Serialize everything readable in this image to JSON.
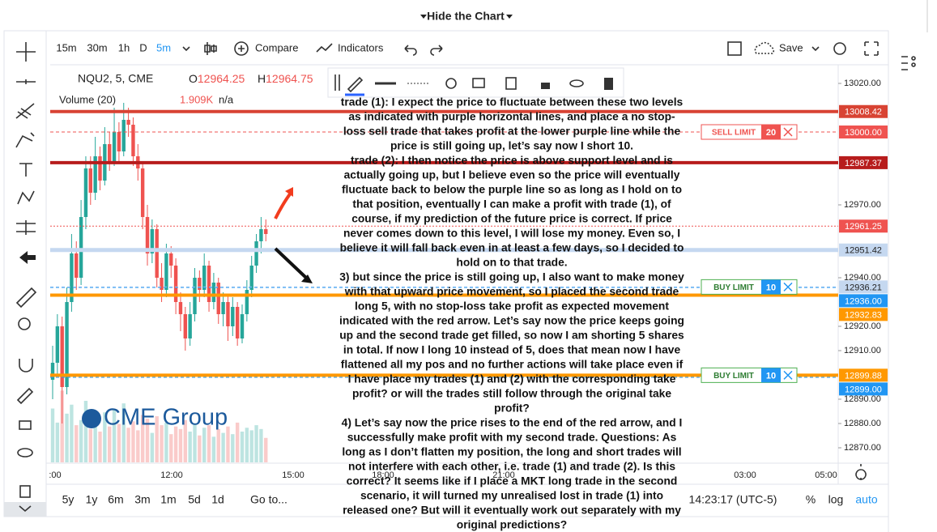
{
  "header": {
    "title": "Hide the Chart"
  },
  "toolbar": {
    "intervals": [
      "15m",
      "30m",
      "1h",
      "D",
      "5m"
    ],
    "compare": "Compare",
    "indicators": "Indicators",
    "save": "Save"
  },
  "legend": {
    "symbol": "NQU2, 5, CME",
    "ohlc": [
      {
        "label": "O",
        "value": 12964.25
      },
      {
        "label": "H",
        "value": 12964.75
      }
    ],
    "volume": "Volume (20)",
    "volume_value": "1.909K",
    "volume_ma": "n/a"
  },
  "chart": {
    "ylim": [
      12864,
      13026
    ],
    "yticks": [
      {
        "value": 13020,
        "label": "13020.00"
      },
      {
        "value": 12970,
        "label": "12970.00"
      },
      {
        "value": 12940,
        "label": "12940.00"
      },
      {
        "value": 12920,
        "label": "12920.00"
      },
      {
        "value": 12910,
        "label": "12910.00"
      },
      {
        "value": 12890,
        "label": "12890.00"
      },
      {
        "value": 12880,
        "label": "12880.00"
      },
      {
        "value": 12870,
        "label": "12870.00"
      }
    ],
    "xticks": [
      ":00",
      "12:00",
      "15:00",
      "18:00",
      "21:00",
      "03:00",
      "05:00"
    ],
    "candles": [
      [
        12898,
        12912,
        12890,
        12905
      ],
      [
        12905,
        12925,
        12900,
        12920
      ],
      [
        12920,
        12924,
        12880,
        12895
      ],
      [
        12895,
        12936,
        12892,
        12930
      ],
      [
        12930,
        12958,
        12926,
        12950
      ],
      [
        12950,
        12955,
        12935,
        12940
      ],
      [
        12940,
        12972,
        12937,
        12965
      ],
      [
        12965,
        12990,
        12960,
        12985
      ],
      [
        12985,
        12990,
        12970,
        12975
      ],
      [
        12975,
        12998,
        12972,
        12990
      ],
      [
        12990,
        12994,
        12976,
        12980
      ],
      [
        12980,
        13002,
        12978,
        12995
      ],
      [
        12995,
        13000,
        12984,
        12988
      ],
      [
        12988,
        13010,
        12986,
        13000
      ],
      [
        13000,
        13004,
        12988,
        12992
      ],
      [
        12992,
        13012,
        12990,
        13005
      ],
      [
        13005,
        13010,
        12998,
        13003
      ],
      [
        13003,
        13006,
        12986,
        12990
      ],
      [
        12990,
        12995,
        12980,
        12985
      ],
      [
        12985,
        12988,
        12960,
        12965
      ],
      [
        12965,
        12970,
        12945,
        12950
      ],
      [
        12950,
        12964,
        12946,
        12960
      ],
      [
        12960,
        12962,
        12936,
        12940
      ],
      [
        12940,
        12946,
        12930,
        12935
      ],
      [
        12935,
        12954,
        12932,
        12950
      ],
      [
        12950,
        12953,
        12940,
        12945
      ],
      [
        12945,
        12948,
        12925,
        12930
      ],
      [
        12930,
        12934,
        12918,
        12925
      ],
      [
        12925,
        12928,
        12910,
        12915
      ],
      [
        12915,
        12930,
        12912,
        12925
      ],
      [
        12925,
        12944,
        12922,
        12940
      ],
      [
        12940,
        12943,
        12930,
        12935
      ],
      [
        12935,
        12950,
        12932,
        12945
      ],
      [
        12945,
        12947,
        12926,
        12930
      ],
      [
        12930,
        12942,
        12927,
        12938
      ],
      [
        12938,
        12940,
        12921,
        12925
      ],
      [
        12925,
        12934,
        12920,
        12930
      ],
      [
        12930,
        12933,
        12914,
        12920
      ],
      [
        12920,
        12932,
        12916,
        12928
      ],
      [
        12928,
        12930,
        12912,
        12915
      ],
      [
        12915,
        12929,
        12913,
        12925
      ],
      [
        12925,
        12939,
        12922,
        12935
      ],
      [
        12935,
        12949,
        12932,
        12945
      ],
      [
        12945,
        12958,
        12942,
        12955
      ],
      [
        12955,
        12965,
        12950,
        12960
      ],
      [
        12960,
        12964,
        12955,
        12958
      ]
    ],
    "volumes": [
      4.2,
      3.1,
      5.6,
      3.8,
      4.5,
      2.9,
      3.3,
      4.8,
      2.6,
      3.5,
      2.4,
      3.9,
      2.8,
      4.1,
      3.0,
      4.6,
      2.7,
      3.2,
      2.5,
      3.7,
      3.4,
      2.3,
      3.6,
      2.9,
      3.1,
      2.2,
      2.8,
      2.6,
      3.3,
      2.4,
      3.0,
      2.1,
      2.7,
      2.9,
      2.0,
      2.6,
      2.3,
      2.8,
      2.2,
      3.1,
      2.4,
      2.7,
      2.5,
      2.9,
      2.6,
      1.909
    ],
    "up_color": "#26a69a",
    "down_color": "#ef5350",
    "levels": [
      {
        "value": 13008.42,
        "label": "13008.42",
        "color": "#d84333",
        "text_color": "#ffffff",
        "width": 4,
        "dash": "none"
      },
      {
        "value": 13000.0,
        "label": "13000.00",
        "color": "#ef5350",
        "text_color": "#ffffff",
        "width": 1,
        "dash": "4 3"
      },
      {
        "value": 12987.37,
        "label": "12987.37",
        "color": "#b71c1c",
        "text_color": "#ffffff",
        "width": 4,
        "dash": "none"
      },
      {
        "value": 12961.25,
        "label": "12961.25",
        "color": "#ef5350",
        "text_color": "#ffffff",
        "width": 1,
        "dash": "2 2"
      },
      {
        "value": 12951.42,
        "label": "12951.42",
        "color": "#c5d8f0",
        "text_color": "#222222",
        "width": 5,
        "dash": "none"
      },
      {
        "value": 12936.21,
        "label": "12936.21",
        "color": "#c5d8f0",
        "text_color": "#222222",
        "width": 1,
        "dash": "4 3"
      },
      {
        "value": 12936.0,
        "label": "12936.00",
        "color": "#2196f3",
        "text_color": "#ffffff",
        "width": 1,
        "dash": "4 3"
      },
      {
        "value": 12932.83,
        "label": "12932.83",
        "color": "#ff9800",
        "text_color": "#ffffff",
        "width": 4,
        "dash": "none"
      },
      {
        "value": 12899.88,
        "label": "12899.88",
        "color": "#ff9800",
        "text_color": "#ffffff",
        "width": 4,
        "dash": "none"
      },
      {
        "value": 12899.0,
        "label": "12899.00",
        "color": "#2196f3",
        "text_color": "#ffffff",
        "width": 1,
        "dash": "4 3"
      }
    ],
    "orders": [
      {
        "side": "SELL LIMIT",
        "qty": 20,
        "level": 13000.0,
        "color": "#ef5350"
      },
      {
        "side": "BUY LIMIT",
        "qty": 10,
        "level": 12936.21,
        "color": "#2196f3"
      },
      {
        "side": "BUY LIMIT",
        "qty": 10,
        "level": 12899.88,
        "color": "#2196f3"
      }
    ]
  },
  "logo": "CME Group",
  "note": {
    "lines": [
      "trade (1): I expect the price to fluctuate between these two levels",
      "as indicated with purple horizontal lines, and place a no stop-",
      "loss sell trade that takes profit at the lower purple line while the",
      "price is still going up, let’s say now I short 10.",
      "trade (2): I then notice the price is above support level and is",
      "actually going up, but I believe even so the price will eventually",
      "fluctuate back to below the purple line so as long as I hold on to",
      "that position, eventually I can make a profit with trade (1), of",
      "course, if my prediction of the future price is correct. If price",
      "never comes down to this level, I will lose my money. Even so, I",
      "believe it will fall back even in at least a few days, so I decided to",
      "hold on to that trade.",
      "3) but since the price is still going up, I also want to make money",
      "with that upward price movement, so I placed the second trade",
      "long 5, with no stop-loss take profit as expected movement",
      "indicated with the red arrow. Let’s say now the price keeps going",
      "up and the second trade get filled, so now I am shorting 5 shares",
      "in total. If now I long 10 instead of 5, does that mean now I have",
      "flattened all my pos and no further actions will take place even if",
      "I have place my trades (1) and (2) with the corresponding take",
      "profit? or will the trades still follow through the original take",
      "profit?",
      "4) Let’s say now the price rises to the end of the red arrow, and I",
      "successfully make profit with my second trade. Questions: As",
      "long as I don’t flatten my position, the long and short trades will",
      "not interfere with each other, i.e. trade (1) and trade (2). Is this",
      "correct? It seems like if I place a MKT long trade in the second",
      "scenario, it will turned my unrealised lost in trade (1) into",
      "released one? But will it eventually work out separately with my",
      "original predictions?"
    ]
  },
  "bottom_bar": {
    "ranges": [
      "5y",
      "1y",
      "6m",
      "3m",
      "1m",
      "5d",
      "1d"
    ],
    "goto": "Go to...",
    "clock": "14:23:17 (UTC-5)",
    "percent": "%",
    "log": "log",
    "auto": "auto"
  }
}
